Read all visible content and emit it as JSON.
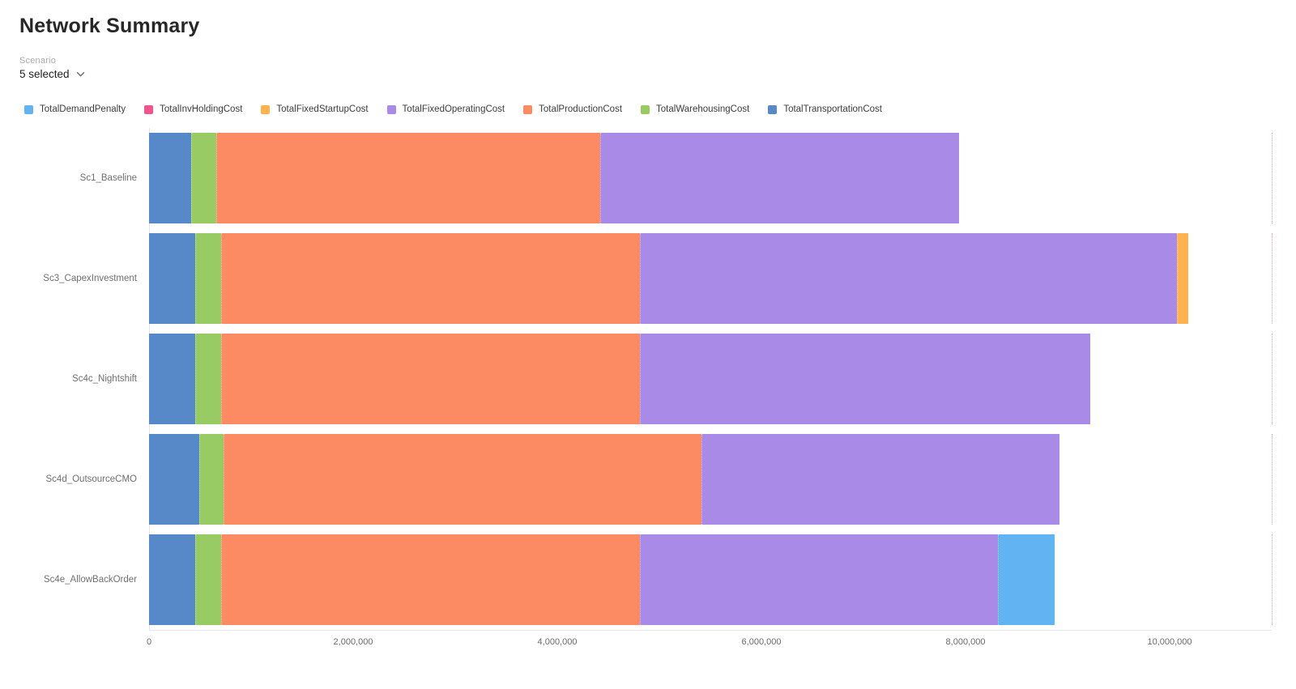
{
  "page": {
    "title": "Network Summary"
  },
  "scenario_filter": {
    "label": "Scenario",
    "value": "5 selected"
  },
  "chart_data": {
    "type": "bar",
    "orientation": "horizontal",
    "stacked": true,
    "title": "Network Summary",
    "xlabel": "",
    "ylabel": "",
    "grid": false,
    "legend_position": "top",
    "xlim": [
      0,
      11000000
    ],
    "categories": [
      "Sc1_Baseline",
      "Sc3_CapexInvestment",
      "Sc4c_Nightshift",
      "Sc4d_OutsourceCMO",
      "Sc4e_AllowBackOrder"
    ],
    "series": [
      {
        "name": "TotalTransportationCost",
        "color": "#5789C8",
        "values": [
          410000,
          450000,
          450000,
          490000,
          450000
        ]
      },
      {
        "name": "TotalWarehousingCost",
        "color": "#99CB64",
        "values": [
          250000,
          260000,
          260000,
          240000,
          260000
        ]
      },
      {
        "name": "TotalProductionCost",
        "color": "#FC8B64",
        "values": [
          3760000,
          4100000,
          4100000,
          4680000,
          4100000
        ]
      },
      {
        "name": "TotalFixedOperatingCost",
        "color": "#A98AE6",
        "values": [
          3520000,
          5260000,
          4410000,
          3510000,
          3510000
        ]
      },
      {
        "name": "TotalFixedStartupCost",
        "color": "#FFB34E",
        "values": [
          0,
          110000,
          0,
          0,
          0
        ]
      },
      {
        "name": "TotalInvHoldingCost",
        "color": "#F0548B",
        "values": [
          0,
          0,
          0,
          0,
          0
        ]
      },
      {
        "name": "TotalDemandPenalty",
        "color": "#61B3F2",
        "values": [
          0,
          0,
          0,
          0,
          550000
        ]
      }
    ],
    "legend_order": [
      "TotalDemandPenalty",
      "TotalInvHoldingCost",
      "TotalFixedStartupCost",
      "TotalFixedOperatingCost",
      "TotalProductionCost",
      "TotalWarehousingCost",
      "TotalTransportationCost"
    ],
    "x_ticks": [
      {
        "value": 0,
        "label": "0"
      },
      {
        "value": 2000000,
        "label": "2,000,000"
      },
      {
        "value": 4000000,
        "label": "4,000,000"
      },
      {
        "value": 6000000,
        "label": "6,000,000"
      },
      {
        "value": 8000000,
        "label": "8,000,000"
      },
      {
        "value": 10000000,
        "label": "10,000,000"
      }
    ]
  }
}
